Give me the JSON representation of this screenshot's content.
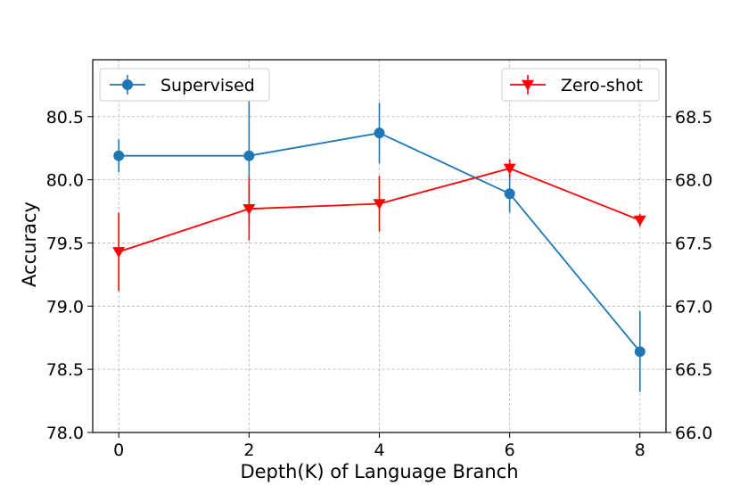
{
  "chart_data": {
    "type": "line",
    "xlabel": "Depth(K) of Language Branch",
    "ylabel": "Accuracy",
    "x": [
      0,
      2,
      4,
      6,
      8
    ],
    "xticks": [
      "0",
      "2",
      "4",
      "6",
      "8"
    ],
    "xlim": [
      -0.4,
      8.4
    ],
    "ylim_left": [
      78.0,
      80.95
    ],
    "ylim_right": [
      66.0,
      68.95
    ],
    "yticks_left": [
      "78.0",
      "78.5",
      "79.0",
      "79.5",
      "80.0",
      "80.5"
    ],
    "yticks_right": [
      "66.0",
      "66.5",
      "67.0",
      "67.5",
      "68.0",
      "68.5"
    ],
    "grid": true,
    "series": [
      {
        "name": "Supervised",
        "axis": "left",
        "color": "#1f77b4",
        "marker": "circle",
        "values": [
          80.19,
          80.19,
          80.37,
          79.89,
          78.64
        ],
        "errors": [
          0.13,
          0.55,
          0.24,
          0.15,
          0.32
        ]
      },
      {
        "name": "Zero-shot",
        "axis": "right",
        "color": "#ff0000",
        "marker": "triangle-down",
        "values": [
          67.43,
          67.77,
          67.81,
          68.09,
          67.68
        ],
        "errors": [
          0.31,
          0.25,
          0.22,
          0.07,
          0.05
        ]
      }
    ],
    "legend": [
      {
        "label": "Supervised",
        "placement": "top-left"
      },
      {
        "label": "Zero-shot",
        "placement": "top-right"
      }
    ]
  }
}
